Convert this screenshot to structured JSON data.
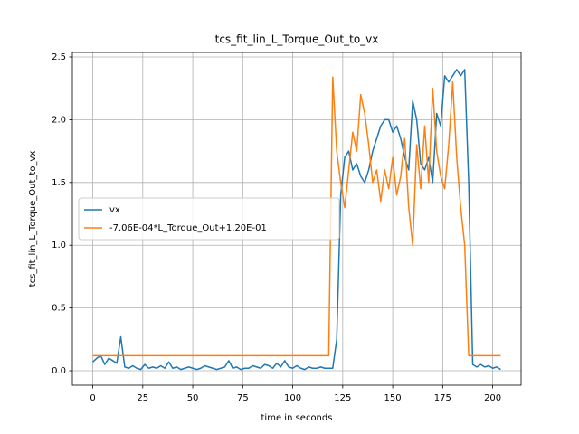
{
  "chart_data": {
    "type": "line",
    "title": "tcs_fit_lin_L_Torque_Out_to_vx",
    "x_label": "time in seconds",
    "y_label": "tcs_fit_lin_L_Torque_Out_to_vx",
    "x": [
      0,
      2,
      4,
      6,
      8,
      10,
      12,
      14,
      16,
      18,
      20,
      22,
      24,
      26,
      28,
      30,
      32,
      34,
      36,
      38,
      40,
      42,
      44,
      46,
      48,
      50,
      52,
      54,
      56,
      58,
      60,
      62,
      64,
      66,
      68,
      70,
      72,
      74,
      76,
      78,
      80,
      82,
      84,
      86,
      88,
      90,
      92,
      94,
      96,
      98,
      100,
      102,
      104,
      106,
      108,
      110,
      112,
      114,
      116,
      118,
      120,
      122,
      124,
      126,
      128,
      130,
      132,
      134,
      136,
      138,
      140,
      142,
      144,
      146,
      148,
      150,
      152,
      154,
      156,
      158,
      160,
      162,
      164,
      166,
      168,
      170,
      172,
      174,
      176,
      178,
      180,
      182,
      184,
      186,
      188,
      190,
      192,
      194,
      196,
      198,
      200,
      202,
      204
    ],
    "series": [
      {
        "name": "vx",
        "color": "#1f77b4",
        "values": [
          0.07,
          0.1,
          0.12,
          0.05,
          0.1,
          0.08,
          0.06,
          0.27,
          0.03,
          0.02,
          0.04,
          0.02,
          0.01,
          0.05,
          0.02,
          0.03,
          0.02,
          0.04,
          0.02,
          0.07,
          0.02,
          0.03,
          0.01,
          0.02,
          0.03,
          0.02,
          0.01,
          0.02,
          0.04,
          0.03,
          0.02,
          0.01,
          0.02,
          0.03,
          0.08,
          0.02,
          0.03,
          0.01,
          0.02,
          0.02,
          0.04,
          0.03,
          0.02,
          0.05,
          0.04,
          0.02,
          0.06,
          0.03,
          0.08,
          0.03,
          0.02,
          0.04,
          0.02,
          0.01,
          0.03,
          0.02,
          0.02,
          0.03,
          0.02,
          0.02,
          0.02,
          0.25,
          1.4,
          1.7,
          1.75,
          1.6,
          1.65,
          1.55,
          1.5,
          1.6,
          1.75,
          1.85,
          1.95,
          2.0,
          2.0,
          1.9,
          1.95,
          1.85,
          1.7,
          1.6,
          2.15,
          2.0,
          1.65,
          1.6,
          1.7,
          1.5,
          2.05,
          1.95,
          2.35,
          2.3,
          2.35,
          2.4,
          2.35,
          2.4,
          1.5,
          0.05,
          0.03,
          0.05,
          0.03,
          0.04,
          0.02,
          0.03,
          0.01
        ]
      },
      {
        "name": "-7.06E-04*L_Torque_Out+1.20E-01",
        "color": "#ff7f0e",
        "values": [
          0.12,
          0.12,
          0.12,
          0.12,
          0.12,
          0.12,
          0.12,
          0.12,
          0.12,
          0.12,
          0.12,
          0.12,
          0.12,
          0.12,
          0.12,
          0.12,
          0.12,
          0.12,
          0.12,
          0.12,
          0.12,
          0.12,
          0.12,
          0.12,
          0.12,
          0.12,
          0.12,
          0.12,
          0.12,
          0.12,
          0.12,
          0.12,
          0.12,
          0.12,
          0.12,
          0.12,
          0.12,
          0.12,
          0.12,
          0.12,
          0.12,
          0.12,
          0.12,
          0.12,
          0.12,
          0.12,
          0.12,
          0.12,
          0.12,
          0.12,
          0.12,
          0.12,
          0.12,
          0.12,
          0.12,
          0.12,
          0.12,
          0.12,
          0.12,
          0.12,
          2.34,
          1.75,
          1.5,
          1.3,
          1.6,
          1.9,
          1.75,
          2.2,
          2.05,
          1.8,
          1.5,
          1.6,
          1.35,
          1.6,
          1.45,
          1.7,
          1.4,
          1.55,
          1.85,
          1.3,
          1.0,
          1.8,
          1.45,
          1.95,
          1.5,
          2.25,
          1.75,
          1.55,
          1.45,
          1.8,
          2.3,
          1.7,
          1.3,
          1.0,
          0.12,
          0.12,
          0.12,
          0.12,
          0.12,
          0.12,
          0.12,
          0.12,
          0.12
        ]
      }
    ],
    "xlim": [
      -10.2,
      214.2
    ],
    "ylim": [
      -0.115,
      2.536
    ],
    "xticks": [
      0,
      25,
      50,
      75,
      100,
      125,
      150,
      175,
      200
    ],
    "yticks": [
      {
        "value": 0,
        "label": "0.0"
      },
      0.5,
      {
        "value": 1,
        "label": "1.0"
      },
      1.5,
      {
        "value": 2,
        "label": "2.0"
      },
      2.5
    ],
    "grid": true,
    "legend": "center left"
  }
}
